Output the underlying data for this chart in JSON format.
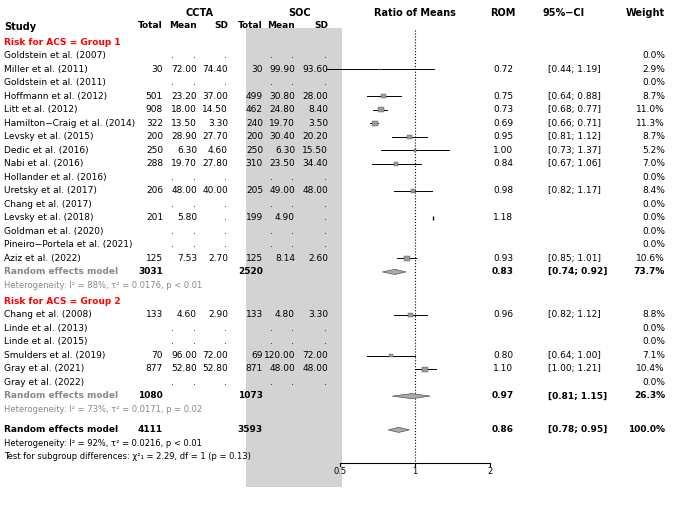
{
  "title_ccta": "CCTA",
  "title_soc": "SOC",
  "group1_label": "Risk for ACS = Group 1",
  "group2_label": "Risk for ACS = Group 2",
  "studies_group1": [
    {
      "name": "Goldstein et al. (2007)",
      "ccta_n": null,
      "ccta_mean": null,
      "ccta_sd": null,
      "soc_n": null,
      "soc_mean": null,
      "soc_sd": null,
      "rom": null,
      "ci_lo": null,
      "ci_hi": null,
      "weight": 0.0
    },
    {
      "name": "Miller et al. (2011)",
      "ccta_n": 30,
      "ccta_mean": 72.0,
      "ccta_sd": 74.4,
      "soc_n": 30,
      "soc_mean": 99.9,
      "soc_sd": 93.6,
      "rom": 0.72,
      "ci_lo": 0.44,
      "ci_hi": 1.19,
      "weight": 2.9
    },
    {
      "name": "Goldstein et al. (2011)",
      "ccta_n": null,
      "ccta_mean": null,
      "ccta_sd": null,
      "soc_n": null,
      "soc_mean": null,
      "soc_sd": null,
      "rom": null,
      "ci_lo": null,
      "ci_hi": null,
      "weight": 0.0
    },
    {
      "name": "Hoffmann et al. (2012)",
      "ccta_n": 501,
      "ccta_mean": 23.2,
      "ccta_sd": 37.0,
      "soc_n": 499,
      "soc_mean": 30.8,
      "soc_sd": 28.0,
      "rom": 0.75,
      "ci_lo": 0.64,
      "ci_hi": 0.88,
      "weight": 8.7
    },
    {
      "name": "Litt et al. (2012)",
      "ccta_n": 908,
      "ccta_mean": 18.0,
      "ccta_sd": 14.5,
      "soc_n": 462,
      "soc_mean": 24.8,
      "soc_sd": 8.4,
      "rom": 0.73,
      "ci_lo": 0.68,
      "ci_hi": 0.77,
      "weight": 11.0
    },
    {
      "name": "Hamilton−Craig et al. (2014)",
      "ccta_n": 322,
      "ccta_mean": 13.5,
      "ccta_sd": 3.3,
      "soc_n": 240,
      "soc_mean": 19.7,
      "soc_sd": 3.5,
      "rom": 0.69,
      "ci_lo": 0.66,
      "ci_hi": 0.71,
      "weight": 11.3
    },
    {
      "name": "Levsky et al. (2015)",
      "ccta_n": 200,
      "ccta_mean": 28.9,
      "ccta_sd": 27.7,
      "soc_n": 200,
      "soc_mean": 30.4,
      "soc_sd": 20.2,
      "rom": 0.95,
      "ci_lo": 0.81,
      "ci_hi": 1.12,
      "weight": 8.7
    },
    {
      "name": "Dedic et al. (2016)",
      "ccta_n": 250,
      "ccta_mean": 6.3,
      "ccta_sd": 4.6,
      "soc_n": 250,
      "soc_mean": 6.3,
      "soc_sd": 15.5,
      "rom": 1.0,
      "ci_lo": 0.73,
      "ci_hi": 1.37,
      "weight": 5.2
    },
    {
      "name": "Nabi et al. (2016)",
      "ccta_n": 288,
      "ccta_mean": 19.7,
      "ccta_sd": 27.8,
      "soc_n": 310,
      "soc_mean": 23.5,
      "soc_sd": 34.4,
      "rom": 0.84,
      "ci_lo": 0.67,
      "ci_hi": 1.06,
      "weight": 7.0
    },
    {
      "name": "Hollander et al. (2016)",
      "ccta_n": null,
      "ccta_mean": null,
      "ccta_sd": null,
      "soc_n": null,
      "soc_mean": null,
      "soc_sd": null,
      "rom": null,
      "ci_lo": null,
      "ci_hi": null,
      "weight": 0.0
    },
    {
      "name": "Uretsky et al. (2017)",
      "ccta_n": 206,
      "ccta_mean": 48.0,
      "ccta_sd": 40.0,
      "soc_n": 205,
      "soc_mean": 49.0,
      "soc_sd": 48.0,
      "rom": 0.98,
      "ci_lo": 0.82,
      "ci_hi": 1.17,
      "weight": 8.4
    },
    {
      "name": "Chang et al. (2017)",
      "ccta_n": null,
      "ccta_mean": null,
      "ccta_sd": null,
      "soc_n": null,
      "soc_mean": null,
      "soc_sd": null,
      "rom": null,
      "ci_lo": null,
      "ci_hi": null,
      "weight": 0.0
    },
    {
      "name": "Levsky et al. (2018)",
      "ccta_n": 201,
      "ccta_mean": 5.8,
      "ccta_sd": null,
      "soc_n": 199,
      "soc_mean": 4.9,
      "soc_sd": null,
      "rom": 1.18,
      "ci_lo": null,
      "ci_hi": null,
      "weight": 0.0
    },
    {
      "name": "Goldman et al. (2020)",
      "ccta_n": null,
      "ccta_mean": null,
      "ccta_sd": null,
      "soc_n": null,
      "soc_mean": null,
      "soc_sd": null,
      "rom": null,
      "ci_lo": null,
      "ci_hi": null,
      "weight": 0.0
    },
    {
      "name": "Pineiro−Portela et al. (2021)",
      "ccta_n": null,
      "ccta_mean": null,
      "ccta_sd": null,
      "soc_n": null,
      "soc_mean": null,
      "soc_sd": null,
      "rom": null,
      "ci_lo": null,
      "ci_hi": null,
      "weight": 0.0
    },
    {
      "name": "Aziz et al. (2022)",
      "ccta_n": 125,
      "ccta_mean": 7.53,
      "ccta_sd": 2.7,
      "soc_n": 125,
      "soc_mean": 8.14,
      "soc_sd": 2.6,
      "rom": 0.93,
      "ci_lo": 0.85,
      "ci_hi": 1.01,
      "weight": 10.6
    }
  ],
  "random1": {
    "ccta_n": 3031,
    "soc_n": 2520,
    "rom": 0.83,
    "ci_lo": 0.74,
    "ci_hi": 0.92,
    "weight": 73.7
  },
  "heterogeneity1": "Heterogeneity: I² = 88%, τ² = 0.0176, p < 0.01",
  "studies_group2": [
    {
      "name": "Chang et al. (2008)",
      "ccta_n": 133,
      "ccta_mean": 4.6,
      "ccta_sd": 2.9,
      "soc_n": 133,
      "soc_mean": 4.8,
      "soc_sd": 3.3,
      "rom": 0.96,
      "ci_lo": 0.82,
      "ci_hi": 1.12,
      "weight": 8.8
    },
    {
      "name": "Linde et al. (2013)",
      "ccta_n": null,
      "ccta_mean": null,
      "ccta_sd": null,
      "soc_n": null,
      "soc_mean": null,
      "soc_sd": null,
      "rom": null,
      "ci_lo": null,
      "ci_hi": null,
      "weight": 0.0
    },
    {
      "name": "Linde et al. (2015)",
      "ccta_n": null,
      "ccta_mean": null,
      "ccta_sd": null,
      "soc_n": null,
      "soc_mean": null,
      "soc_sd": null,
      "rom": null,
      "ci_lo": null,
      "ci_hi": null,
      "weight": 0.0
    },
    {
      "name": "Smulders et al. (2019)",
      "ccta_n": 70,
      "ccta_mean": 96.0,
      "ccta_sd": 72.0,
      "soc_n": 69,
      "soc_mean": 120.0,
      "soc_sd": 72.0,
      "rom": 0.8,
      "ci_lo": 0.64,
      "ci_hi": 1.0,
      "weight": 7.1
    },
    {
      "name": "Gray et al. (2021)",
      "ccta_n": 877,
      "ccta_mean": 52.8,
      "ccta_sd": 52.8,
      "soc_n": 871,
      "soc_mean": 48.0,
      "soc_sd": 48.0,
      "rom": 1.1,
      "ci_lo": 1.0,
      "ci_hi": 1.21,
      "weight": 10.4
    },
    {
      "name": "Gray et al. (2022)",
      "ccta_n": null,
      "ccta_mean": null,
      "ccta_sd": null,
      "soc_n": null,
      "soc_mean": null,
      "soc_sd": null,
      "rom": null,
      "ci_lo": null,
      "ci_hi": null,
      "weight": 0.0
    }
  ],
  "random2": {
    "ccta_n": 1080,
    "soc_n": 1073,
    "rom": 0.97,
    "ci_lo": 0.81,
    "ci_hi": 1.15,
    "weight": 26.3
  },
  "heterogeneity2": "Heterogeneity: I² = 73%, τ² = 0.0171, p = 0.02",
  "overall": {
    "ccta_n": 4111,
    "soc_n": 3593,
    "rom": 0.86,
    "ci_lo": 0.78,
    "ci_hi": 0.95,
    "weight": 100.0
  },
  "heterogeneity_overall": "Heterogeneity: I² = 92%, τ² = 0.0216, p < 0.01",
  "subgroup_test": "Test for subgroup differences: χ²₁ = 2.29, df = 1 (p = 0.13)",
  "xmin": 0.5,
  "xmax": 2.0,
  "xref": 1.0,
  "bg_color": "#d3d3d3",
  "fig_bg": "#ffffff"
}
